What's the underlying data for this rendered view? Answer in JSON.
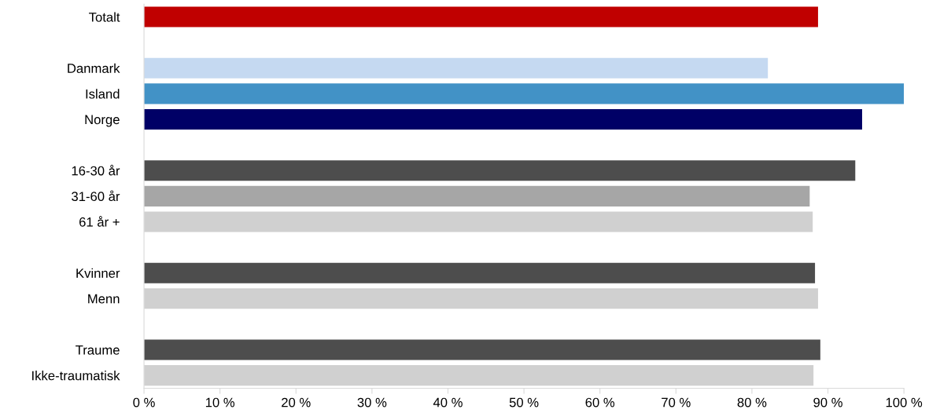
{
  "chart_data": {
    "type": "bar",
    "orientation": "horizontal",
    "categories": [
      "Totalt",
      null,
      "Danmark",
      "Island",
      "Norge",
      null,
      "16-30 år",
      "31-60 år",
      "61 år +",
      null,
      "Kvinner",
      "Menn",
      null,
      "Traume",
      "Ikke-traumatisk"
    ],
    "values": [
      88.7,
      null,
      82.1,
      100,
      94.5,
      null,
      93.6,
      87.6,
      88.0,
      null,
      88.3,
      88.7,
      null,
      89.0,
      88.1
    ],
    "colors": [
      "#c00000",
      null,
      "#c5d9f1",
      "#4292c6",
      "#000066",
      null,
      "#4d4d4d",
      "#a6a6a6",
      "#d0d0d0",
      null,
      "#4d4d4d",
      "#d0d0d0",
      null,
      "#4d4d4d",
      "#d0d0d0"
    ],
    "xlim": [
      0,
      100
    ],
    "xticks": [
      {
        "value": 0,
        "label": "0 %"
      },
      {
        "value": 10,
        "label": "10 %"
      },
      {
        "value": 20,
        "label": "20 %"
      },
      {
        "value": 30,
        "label": "30 %"
      },
      {
        "value": 40,
        "label": "40 %"
      },
      {
        "value": 50,
        "label": "50 %"
      },
      {
        "value": 60,
        "label": "60 %"
      },
      {
        "value": 70,
        "label": "70 %"
      },
      {
        "value": 80,
        "label": "80 %"
      },
      {
        "value": 90,
        "label": "90 %"
      },
      {
        "value": 100,
        "label": "100 %"
      }
    ],
    "grid": false,
    "legend": false
  }
}
